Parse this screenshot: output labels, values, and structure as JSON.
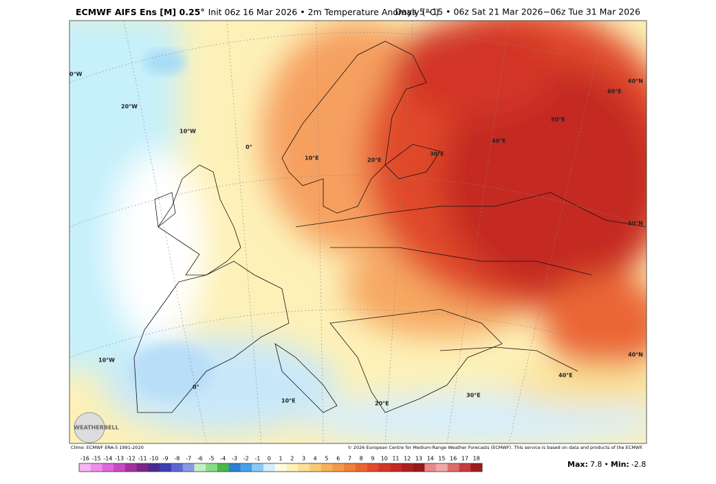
{
  "header": {
    "title_bold": "ECMWF AIFS Ens [M] 0.25°",
    "title_rest": "Init 06z 16 Mar 2026 • 2m Temperature Anomaly (°C)",
    "period": "Days 5−15 • 06z Sat 21 Mar 2026−06z Tue 31 Mar 2026"
  },
  "map": {
    "labels": [
      "0°W",
      "20°W",
      "10°W",
      "0°",
      "10°E",
      "20°E",
      "30°E",
      "40°E",
      "50°E",
      "60°E",
      "60°N",
      "50°N",
      "40°N",
      "10°W",
      "0°",
      "10°E",
      "20°E",
      "30°E",
      "40°E"
    ],
    "logo": "WEATHERBELL"
  },
  "footer": {
    "climo": "Climo: ECMWF ERA-5 1991-2020",
    "copyright": "© 2026 European Centre for Medium-Range Weather Forecasts (ECMWF). This service is based on data and products of the ECMWF."
  },
  "stats": {
    "max_label": "Max:",
    "max": 7.8,
    "separator": "•",
    "min_label": "Min:",
    "min": -2.8
  },
  "colorbar": {
    "ticks": [
      -16,
      -15,
      -14,
      -13,
      -12,
      -11,
      -10,
      -9,
      -8,
      -7,
      -6,
      -5,
      -4,
      -3,
      -2,
      -1,
      0,
      1,
      2,
      3,
      4,
      5,
      6,
      7,
      8,
      9,
      10,
      11,
      12,
      13,
      14,
      15,
      16,
      17,
      18
    ],
    "colors": [
      "#f7b6f2",
      "#ee8fe8",
      "#e066dc",
      "#c84ac6",
      "#a2309f",
      "#7a2488",
      "#4a2a90",
      "#3c3fb0",
      "#5a6ad0",
      "#8a98e4",
      "#c4f0c4",
      "#88dc88",
      "#48b848",
      "#2b7fd0",
      "#4aa0e6",
      "#8dc8f4",
      "#d6eefb",
      "#fffbe2",
      "#fdf1b8",
      "#fbe196",
      "#f9ca74",
      "#f6b05c",
      "#f3994c",
      "#ef803e",
      "#ea6634",
      "#e04c2c",
      "#d23626",
      "#c22a22",
      "#ac1e1e",
      "#951818",
      "#e88a8a",
      "#f0a8a8",
      "#dd6c6c",
      "#c43c3c",
      "#9c1c1c"
    ]
  }
}
